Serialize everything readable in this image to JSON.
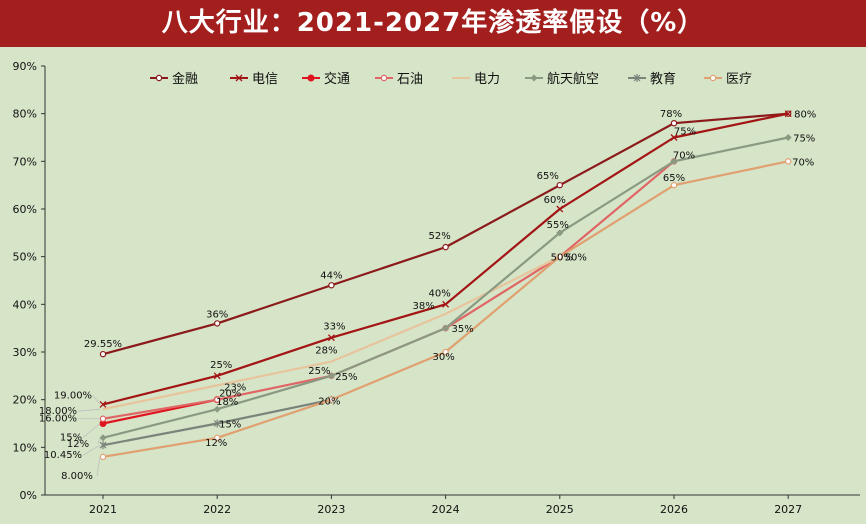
{
  "chart_data": {
    "type": "line",
    "title": "八大行业：2021-2027年渗透率假设（%）",
    "xlabel": "",
    "ylabel": "",
    "x": [
      "2021",
      "2022",
      "2023",
      "2024",
      "2025",
      "2026",
      "2027"
    ],
    "ylim": [
      0,
      90
    ],
    "yticks": [
      "0%",
      "10%",
      "20%",
      "30%",
      "40%",
      "50%",
      "60%",
      "70%",
      "80%",
      "90%"
    ],
    "legend_position": "top",
    "grid": false,
    "series": [
      {
        "name": "金融",
        "color": "#8b1a1a",
        "marker": "circle-open",
        "values": [
          29.55,
          36,
          44,
          52,
          65,
          78,
          80
        ],
        "labels": [
          "29.55%",
          "36%",
          "44%",
          "52%",
          "65%",
          "78%",
          "80%"
        ]
      },
      {
        "name": "电信",
        "color": "#a31515",
        "marker": "x",
        "values": [
          19,
          25,
          33,
          40,
          60,
          75,
          80
        ],
        "labels": [
          "19.00%",
          "25%",
          "33%",
          "40%",
          "60%",
          "75%",
          ""
        ]
      },
      {
        "name": "交通",
        "color": "#e0141e",
        "marker": "circle-filled",
        "values": [
          15,
          20,
          null,
          null,
          null,
          null,
          null
        ],
        "labels": [
          "",
          "",
          "",
          "",
          "",
          "",
          ""
        ]
      },
      {
        "name": "石油",
        "color": "#e06666",
        "marker": "circle-open",
        "values": [
          16,
          20,
          25,
          35,
          50,
          70,
          null
        ],
        "labels": [
          "16.00%",
          "20%",
          "25%",
          "35%",
          "50%",
          "",
          ""
        ]
      },
      {
        "name": "电力",
        "color": "#e8c49c",
        "marker": "none",
        "values": [
          18,
          23,
          28,
          38,
          50,
          null,
          null
        ],
        "labels": [
          "18.00%",
          "23%",
          "28%",
          "38%",
          "50%",
          "",
          ""
        ]
      },
      {
        "name": "航天航空",
        "color": "#8a9a82",
        "marker": "diamond",
        "values": [
          12,
          18,
          25,
          35,
          55,
          70,
          75
        ],
        "labels": [
          "12%",
          "18%",
          "25%",
          "",
          "55%",
          "70%",
          "75%"
        ]
      },
      {
        "name": "教育",
        "color": "#7a847a",
        "marker": "star",
        "values": [
          10.45,
          15,
          20,
          null,
          null,
          null,
          null
        ],
        "labels": [
          "10.45%",
          "15%",
          "",
          "",
          "",
          "",
          ""
        ]
      },
      {
        "name": "医疗",
        "color": "#e0a070",
        "marker": "circle-open",
        "values": [
          8,
          12,
          20,
          30,
          50,
          65,
          70
        ],
        "labels": [
          "8.00%",
          "12%",
          "20%",
          "30%",
          "",
          "65%",
          "70%"
        ],
        "extra_labels": [
          "15%"
        ]
      }
    ]
  }
}
